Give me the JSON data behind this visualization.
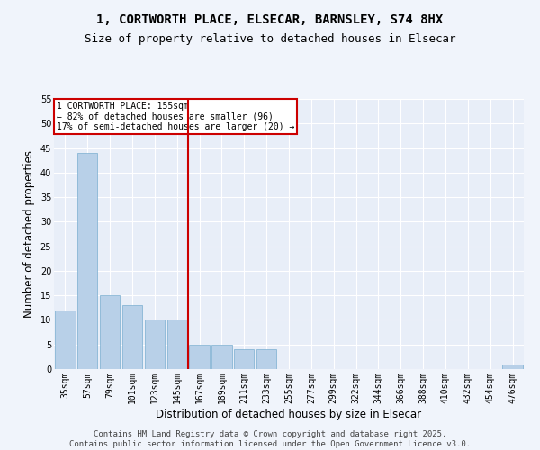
{
  "title_line1": "1, CORTWORTH PLACE, ELSECAR, BARNSLEY, S74 8HX",
  "title_line2": "Size of property relative to detached houses in Elsecar",
  "xlabel": "Distribution of detached houses by size in Elsecar",
  "ylabel": "Number of detached properties",
  "bins": [
    "35sqm",
    "57sqm",
    "79sqm",
    "101sqm",
    "123sqm",
    "145sqm",
    "167sqm",
    "189sqm",
    "211sqm",
    "233sqm",
    "255sqm",
    "277sqm",
    "299sqm",
    "322sqm",
    "344sqm",
    "366sqm",
    "388sqm",
    "410sqm",
    "432sqm",
    "454sqm",
    "476sqm"
  ],
  "values": [
    12,
    44,
    15,
    13,
    10,
    10,
    5,
    5,
    4,
    4,
    0,
    0,
    0,
    0,
    0,
    0,
    0,
    0,
    0,
    0,
    1
  ],
  "bar_color": "#b8d0e8",
  "bar_edge_color": "#7aaed0",
  "vline_color": "#cc0000",
  "annotation_text": "1 CORTWORTH PLACE: 155sqm\n← 82% of detached houses are smaller (96)\n17% of semi-detached houses are larger (20) →",
  "annotation_box_color": "#ffffff",
  "annotation_box_edge": "#cc0000",
  "ylim": [
    0,
    55
  ],
  "yticks": [
    0,
    5,
    10,
    15,
    20,
    25,
    30,
    35,
    40,
    45,
    50,
    55
  ],
  "background_color": "#e8eef8",
  "grid_color": "#ffffff",
  "fig_background": "#f0f4fb",
  "footer_text": "Contains HM Land Registry data © Crown copyright and database right 2025.\nContains public sector information licensed under the Open Government Licence v3.0.",
  "title_fontsize": 10,
  "subtitle_fontsize": 9,
  "tick_fontsize": 7,
  "label_fontsize": 8.5,
  "footer_fontsize": 6.5,
  "annot_fontsize": 7
}
